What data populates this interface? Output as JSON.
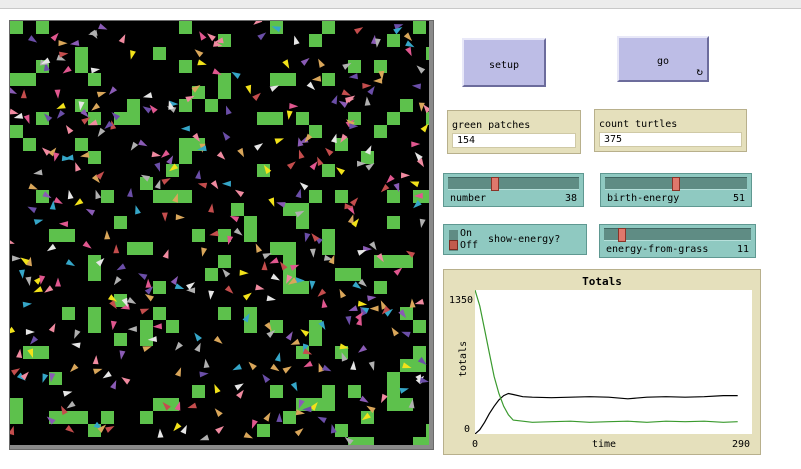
{
  "buttons": {
    "setup_label": "setup",
    "go_label": "go",
    "go_forever_icon": "forever-loop-icon"
  },
  "monitors": {
    "green_patches": {
      "label": "green patches",
      "value": "154"
    },
    "count_turtles": {
      "label": "count turtles",
      "value": "375"
    }
  },
  "sliders": {
    "number": {
      "label": "number",
      "value": "38",
      "fraction": 0.35
    },
    "birth_energy": {
      "label": "birth-energy",
      "value": "51",
      "fraction": 0.5
    },
    "energy_from_grass": {
      "label": "energy-from-grass",
      "value": "11",
      "fraction": 0.1
    }
  },
  "switch": {
    "label": "show-energy?",
    "on_label": "On",
    "off_label": "Off",
    "state": "off"
  },
  "colors": {
    "world_background": "#000000",
    "grass": "#5dc14c",
    "button": "#bdbde6",
    "monitor": "#e5e0bc",
    "slider": "#8fc9c1",
    "turtle_palette": [
      "#e0578f",
      "#f2e21a",
      "#35a6c8",
      "#8a5bb5",
      "#f08aa0",
      "#b0b0b0",
      "#6b4ea8",
      "#c44d4d",
      "#d9a65a",
      "#e6e6e6"
    ]
  },
  "plot": {
    "title": "Totals",
    "y_label": "totals",
    "x_label": "time",
    "y_min_label": "0",
    "y_max_label": "1350",
    "x_min_label": "0",
    "x_max_label": "290"
  },
  "chart_data": {
    "type": "line",
    "title": "Totals",
    "xlabel": "time",
    "ylabel": "totals",
    "xlim": [
      0,
      290
    ],
    "ylim": [
      0,
      1350
    ],
    "series": [
      {
        "color": "#000000",
        "x": [
          0,
          5,
          10,
          15,
          20,
          25,
          30,
          35,
          40,
          50,
          60,
          80,
          100,
          120,
          140,
          160,
          180,
          200,
          220,
          240,
          260,
          275
        ],
        "y": [
          0,
          40,
          110,
          190,
          260,
          320,
          360,
          380,
          370,
          350,
          345,
          340,
          345,
          350,
          345,
          330,
          345,
          350,
          345,
          350,
          360,
          360
        ]
      },
      {
        "color": "#3a9a2e",
        "x": [
          0,
          5,
          10,
          15,
          20,
          25,
          30,
          35,
          40,
          50,
          60,
          80,
          100,
          120,
          140,
          160,
          180,
          200,
          220,
          240,
          260,
          275
        ],
        "y": [
          1350,
          1200,
          980,
          760,
          540,
          380,
          260,
          180,
          130,
          120,
          110,
          115,
          120,
          110,
          115,
          120,
          110,
          120,
          115,
          120,
          110,
          115
        ]
      }
    ]
  }
}
